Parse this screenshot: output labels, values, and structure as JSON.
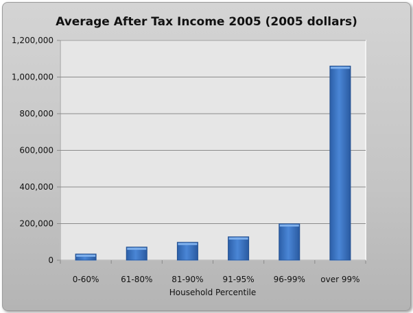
{
  "chart_data": {
    "type": "bar",
    "title": "Average After Tax Income 2005 (2005 dollars)",
    "xlabel": "Household Percentile",
    "ylabel": "",
    "categories": [
      "0-60%",
      "61-80%",
      "81-90%",
      "91-95%",
      "96-99%",
      "over 99%"
    ],
    "values": [
      34000,
      72000,
      98000,
      128000,
      199000,
      1060000
    ],
    "ylim": [
      0,
      1200000
    ],
    "yticks": [
      0,
      200000,
      400000,
      600000,
      800000,
      1000000,
      1200000
    ],
    "ytick_labels": [
      "0",
      "200,000",
      "400,000",
      "600,000",
      "800,000",
      "1,000,000",
      "1,200,000"
    ],
    "grid": true,
    "legend": "none",
    "bar_color": "#3f79c7",
    "plot_background": "#e6e6e6"
  }
}
